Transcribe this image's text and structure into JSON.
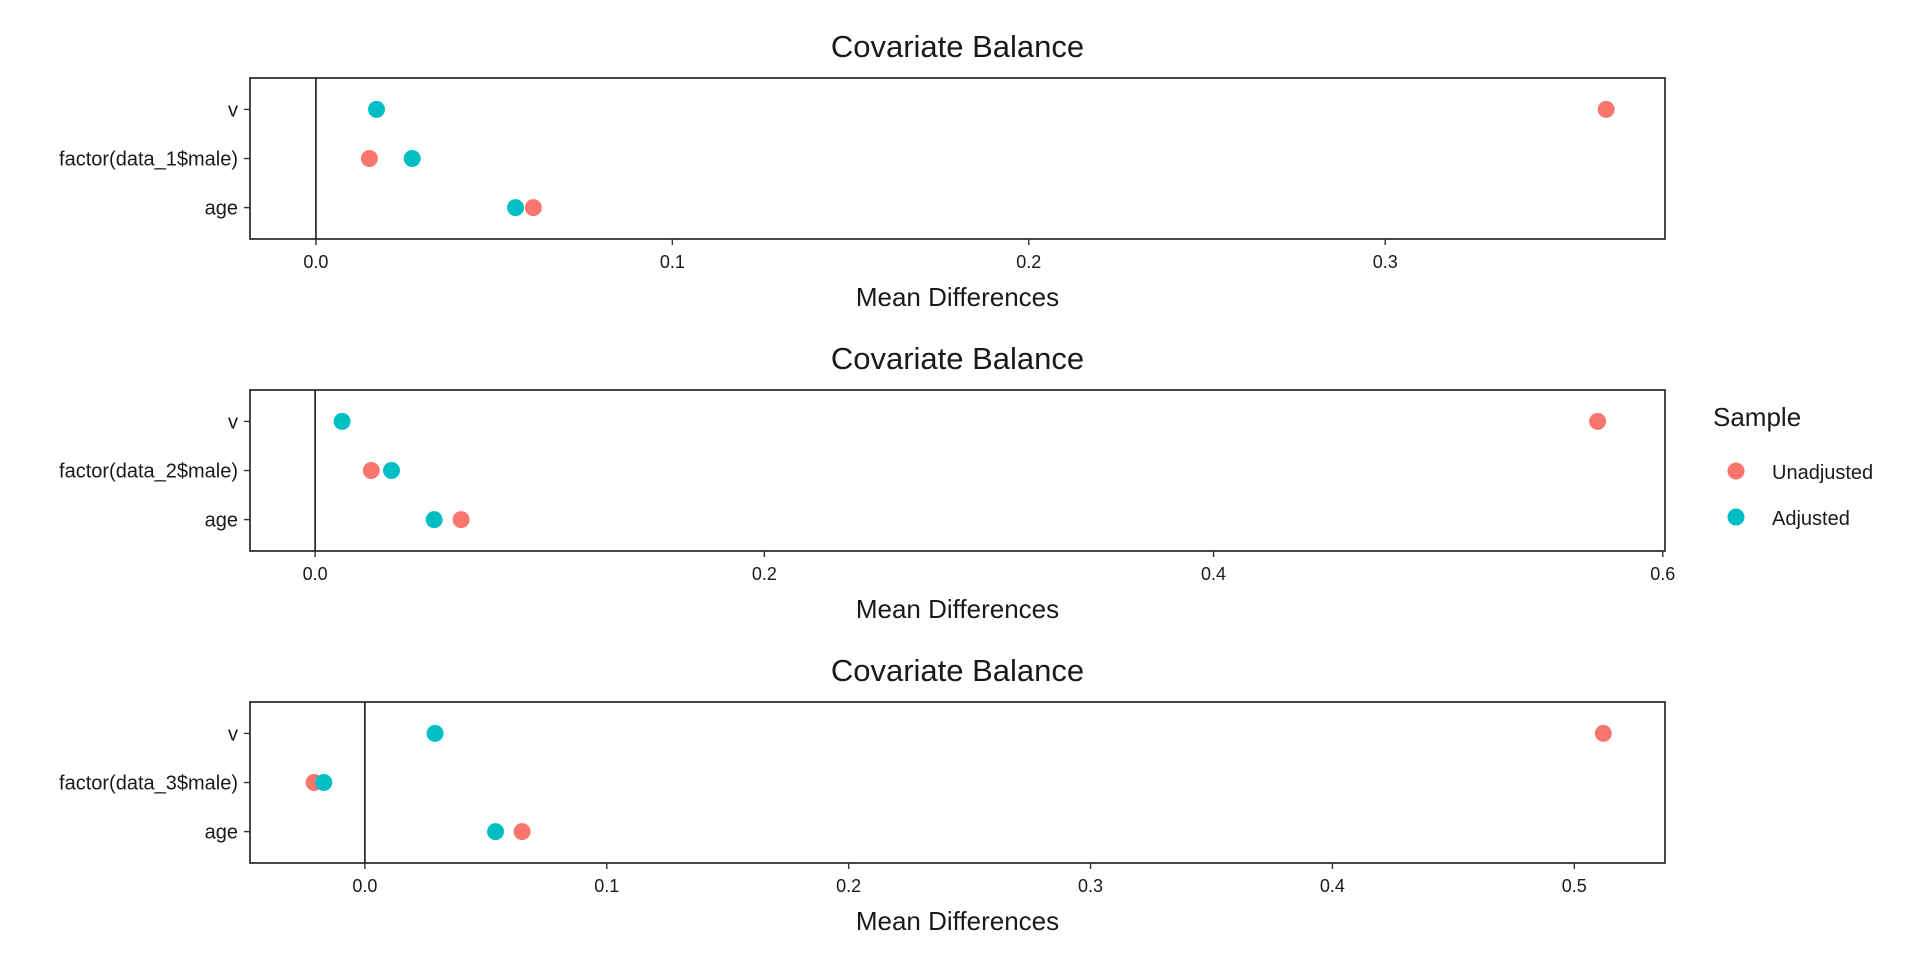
{
  "legend": {
    "title": "Sample",
    "position": "right",
    "items": [
      {
        "label": "Unadjusted",
        "color": "#F8766D"
      },
      {
        "label": "Adjusted",
        "color": "#00BFC4"
      }
    ]
  },
  "chart_data": [
    {
      "type": "scatter",
      "title": "Covariate Balance",
      "xlabel": "Mean Differences",
      "ylabel": "",
      "xlim": [
        -0.0185,
        0.3785
      ],
      "xticks": [
        0.0,
        0.1,
        0.2,
        0.3
      ],
      "xtick_labels": [
        "0.0",
        "0.1",
        "0.2",
        "0.3"
      ],
      "reference_line_x": 0,
      "categories": [
        "v",
        "factor(data_1$male)",
        "age"
      ],
      "series": [
        {
          "name": "Unadjusted",
          "color": "#F8766D",
          "values": [
            0.362,
            0.015,
            0.061
          ]
        },
        {
          "name": "Adjusted",
          "color": "#00BFC4",
          "values": [
            0.017,
            0.027,
            0.056
          ]
        }
      ]
    },
    {
      "type": "scatter",
      "title": "Covariate Balance",
      "xlabel": "Mean Differences",
      "ylabel": "",
      "xlim": [
        -0.029,
        0.601
      ],
      "xticks": [
        0.0,
        0.2,
        0.4,
        0.6
      ],
      "xtick_labels": [
        "0.0",
        "0.2",
        "0.4",
        "0.6"
      ],
      "reference_line_x": 0,
      "categories": [
        "v",
        "factor(data_2$male)",
        "age"
      ],
      "series": [
        {
          "name": "Unadjusted",
          "color": "#F8766D",
          "values": [
            0.571,
            0.025,
            0.065
          ]
        },
        {
          "name": "Adjusted",
          "color": "#00BFC4",
          "values": [
            0.012,
            0.034,
            0.053
          ]
        }
      ]
    },
    {
      "type": "scatter",
      "title": "Covariate Balance",
      "xlabel": "Mean Differences",
      "ylabel": "",
      "xlim": [
        -0.0475,
        0.5375
      ],
      "xticks": [
        0.0,
        0.1,
        0.2,
        0.3,
        0.4,
        0.5
      ],
      "xtick_labels": [
        "0.0",
        "0.1",
        "0.2",
        "0.3",
        "0.4",
        "0.5"
      ],
      "reference_line_x": 0,
      "categories": [
        "v",
        "factor(data_3$male)",
        "age"
      ],
      "series": [
        {
          "name": "Unadjusted",
          "color": "#F8766D",
          "values": [
            0.512,
            -0.021,
            0.065
          ]
        },
        {
          "name": "Adjusted",
          "color": "#00BFC4",
          "values": [
            0.029,
            -0.017,
            0.054
          ]
        }
      ]
    }
  ]
}
